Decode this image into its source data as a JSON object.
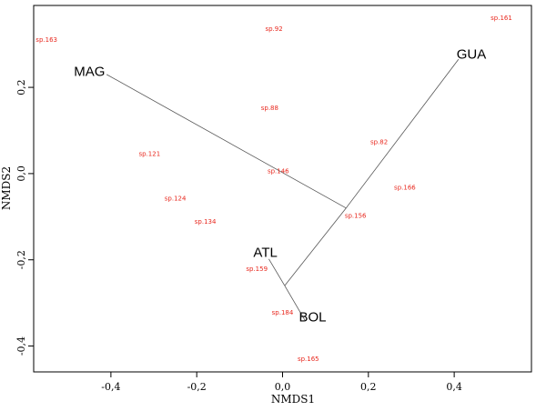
{
  "chart_data": {
    "type": "scatter",
    "title": "",
    "xlabel": "NMDS1",
    "ylabel": "NMDS2",
    "xlim": [
      -0.58,
      0.58
    ],
    "ylim": [
      -0.46,
      0.39
    ],
    "x_ticks": [
      -0.4,
      -0.2,
      0.0,
      0.2,
      0.4
    ],
    "y_ticks": [
      -0.4,
      -0.2,
      0.0,
      0.2
    ],
    "x_tick_labels": [
      "-0,4",
      "-0,2",
      "0,0",
      "0,2",
      "0,4"
    ],
    "y_tick_labels": [
      "-0,4",
      "-0,2",
      "0,0",
      "0,2"
    ],
    "species": [
      {
        "label": "sp.163",
        "x": -0.55,
        "y": 0.31
      },
      {
        "label": "sp.92",
        "x": -0.02,
        "y": 0.335
      },
      {
        "label": "sp.161",
        "x": 0.51,
        "y": 0.36
      },
      {
        "label": "sp.88",
        "x": -0.03,
        "y": 0.152
      },
      {
        "label": "sp.82",
        "x": 0.225,
        "y": 0.073
      },
      {
        "label": "sp.121",
        "x": -0.31,
        "y": 0.045
      },
      {
        "label": "sp.146",
        "x": -0.01,
        "y": 0.005
      },
      {
        "label": "sp.166",
        "x": 0.285,
        "y": -0.033
      },
      {
        "label": "sp.124",
        "x": -0.25,
        "y": -0.058
      },
      {
        "label": "sp.156",
        "x": 0.17,
        "y": -0.098
      },
      {
        "label": "sp.134",
        "x": -0.18,
        "y": -0.112
      },
      {
        "label": "sp.159",
        "x": -0.06,
        "y": -0.222
      },
      {
        "label": "sp.184",
        "x": 0.0,
        "y": -0.323
      },
      {
        "label": "sp.165",
        "x": 0.06,
        "y": -0.43
      }
    ],
    "sites": [
      {
        "label": "MAG",
        "x": -0.45,
        "y": 0.235
      },
      {
        "label": "GUA",
        "x": 0.44,
        "y": 0.275
      },
      {
        "label": "ATL",
        "x": -0.04,
        "y": -0.185
      },
      {
        "label": "BOL",
        "x": 0.07,
        "y": -0.335
      }
    ],
    "tree_edges": [
      {
        "from": [
          -0.41,
          0.23
        ],
        "to": [
          0.148,
          -0.08
        ]
      },
      {
        "from": [
          0.148,
          -0.08
        ],
        "to": [
          0.41,
          0.265
        ]
      },
      {
        "from": [
          0.148,
          -0.08
        ],
        "to": [
          0.005,
          -0.26
        ]
      },
      {
        "from": [
          0.005,
          -0.26
        ],
        "to": [
          -0.032,
          -0.198
        ]
      },
      {
        "from": [
          0.005,
          -0.26
        ],
        "to": [
          0.052,
          -0.34
        ]
      }
    ]
  }
}
